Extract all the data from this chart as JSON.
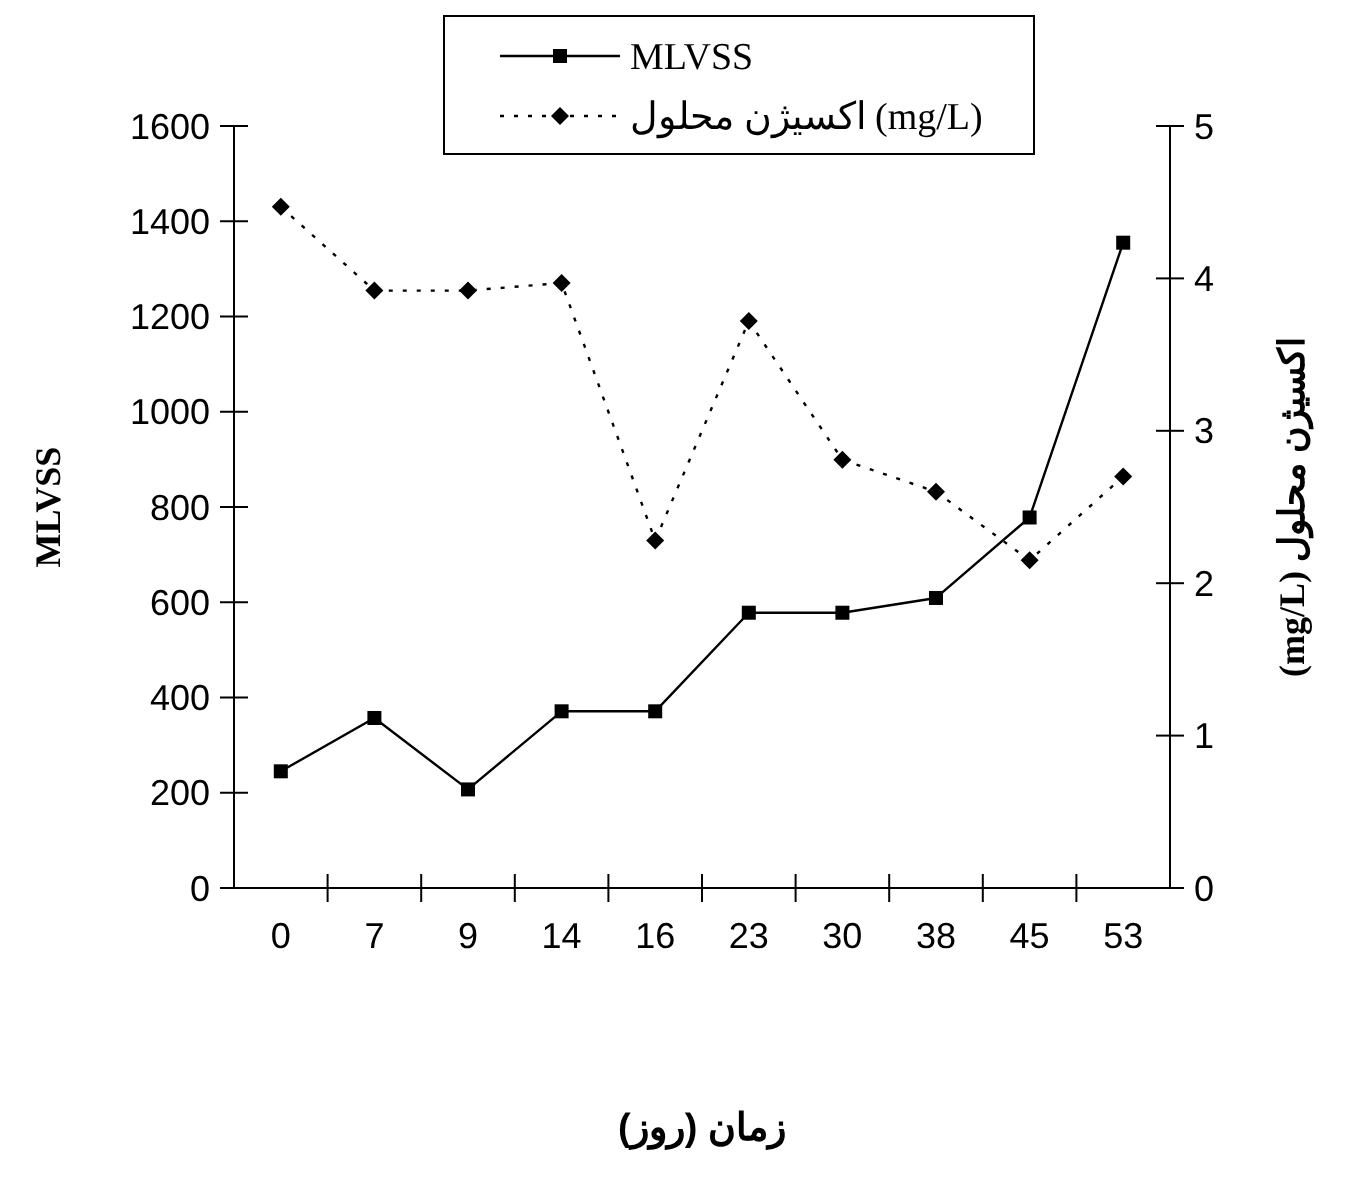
{
  "chart_data": {
    "type": "line",
    "categories": [
      "0",
      "7",
      "9",
      "14",
      "16",
      "23",
      "30",
      "38",
      "45",
      "53"
    ],
    "series": [
      {
        "name": "MLVSS",
        "color": "#000000",
        "values": [
          245,
          357,
          207,
          371,
          371,
          578,
          578,
          609,
          778,
          1355
        ],
        "marker": "square",
        "line_style": "solid"
      },
      {
        "name": "اکسیژن محلول (mg/L)",
        "color": "#000000",
        "values": [
          4.47,
          3.92,
          3.92,
          3.97,
          2.28,
          3.72,
          2.81,
          2.6,
          2.15,
          2.7
        ],
        "marker": "diamond",
        "line_style": "dotted",
        "axis": "y2"
      }
    ],
    "xlabel": "زمان (روز)",
    "ylabel": "MLVSS",
    "y2label": "اکسیژن محلول (mg/L)",
    "ylim": [
      0,
      1600
    ],
    "yticks": [
      0,
      200,
      400,
      600,
      800,
      1000,
      1200,
      1400,
      1600
    ],
    "y2lim": [
      0,
      5
    ],
    "y2ticks": [
      0,
      1,
      2,
      3,
      4,
      5
    ],
    "legend": "top",
    "grid": false
  }
}
